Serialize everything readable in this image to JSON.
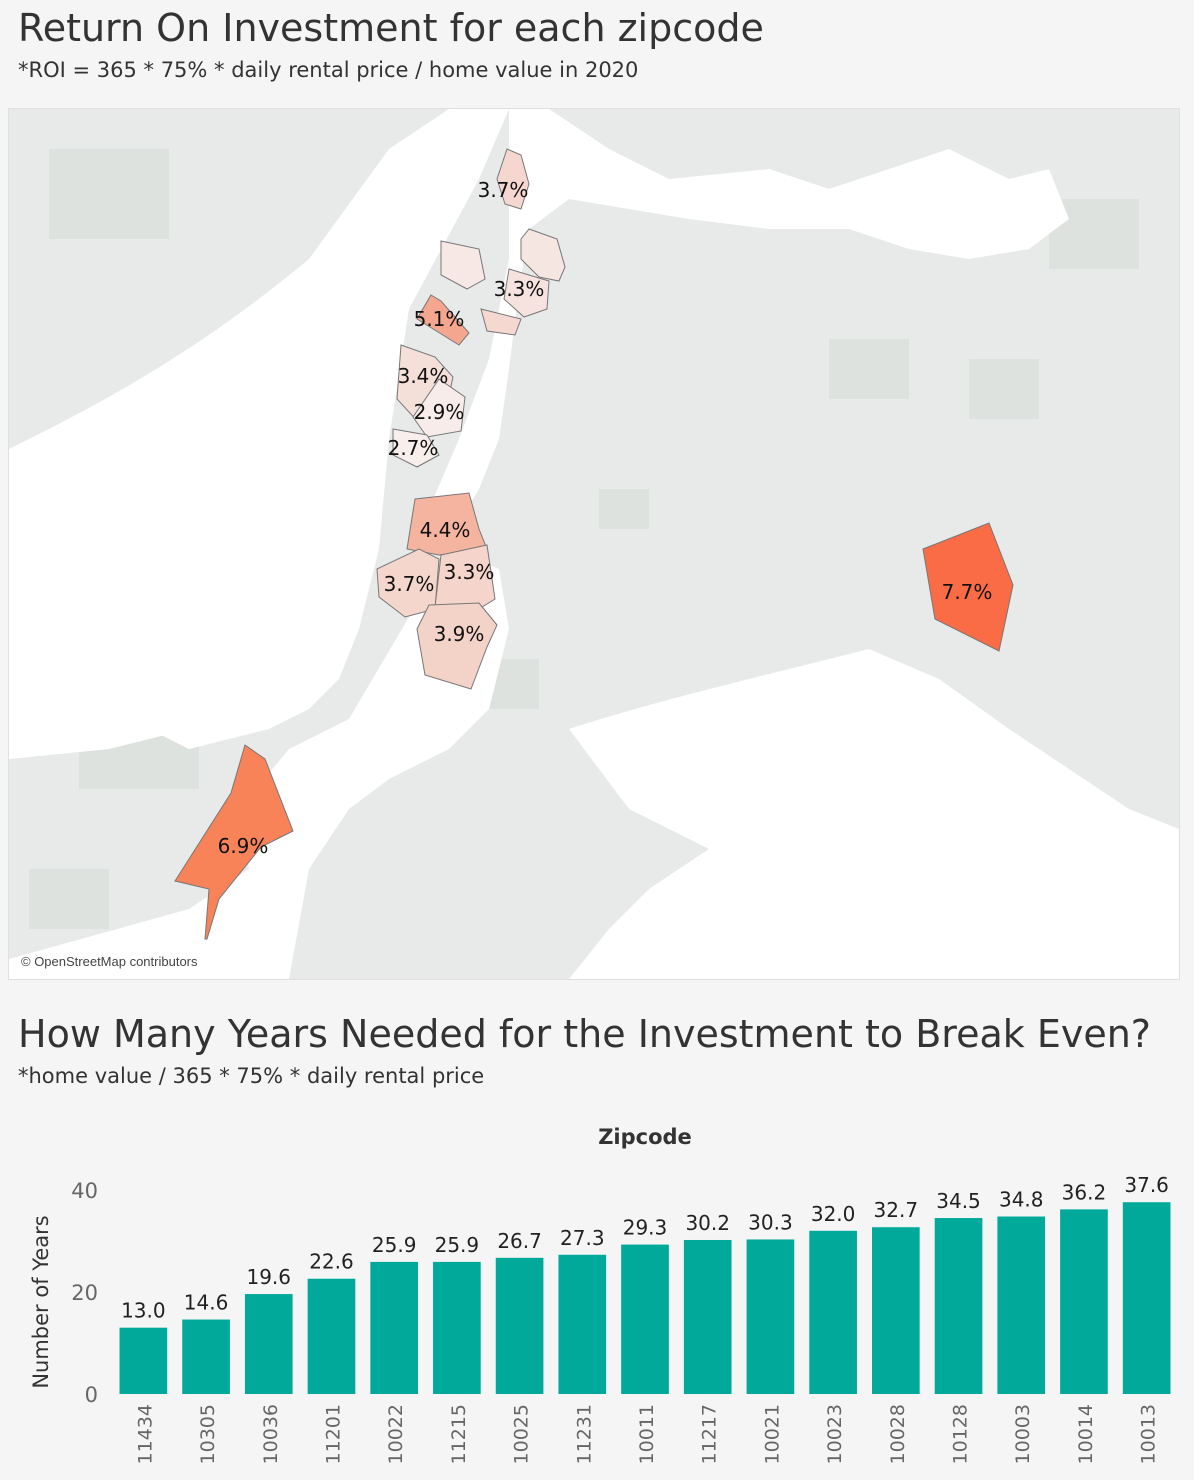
{
  "map_section": {
    "title": "Return On Investment for each zipcode",
    "subtitle": "*ROI = 365 * 75% * daily rental price / home value in 2020",
    "attribution": "© OpenStreetMap contributors",
    "roi_labels": [
      "3.7%",
      "3.3%",
      "5.1%",
      "3.4%",
      "2.9%",
      "2.7%",
      "4.4%",
      "3.7%",
      "3.3%",
      "3.9%",
      "7.7%",
      "6.9%"
    ],
    "colors": {
      "low": "#f7e4e0",
      "mid": "#f4b6a2",
      "high": "#f9805a",
      "water": "#ffffff",
      "land": "#e8e9e9"
    }
  },
  "chart_section": {
    "title": "How Many Years Needed for the Investment to Break Even?",
    "subtitle": "*home value / 365 * 75% * daily rental price"
  },
  "chart_data": {
    "type": "bar",
    "xlabel": "Zipcode",
    "ylabel": "Number of Years",
    "ylim": [
      0,
      40
    ],
    "yticks": [
      "0",
      "20",
      "40"
    ],
    "categories": [
      "11434",
      "10305",
      "10036",
      "11201",
      "10022",
      "11215",
      "10025",
      "11231",
      "10011",
      "11217",
      "10021",
      "10023",
      "10028",
      "10128",
      "10003",
      "10014",
      "10013"
    ],
    "values": [
      13.0,
      14.6,
      19.6,
      22.6,
      25.9,
      25.9,
      26.7,
      27.3,
      29.3,
      30.2,
      30.3,
      32.0,
      32.7,
      34.5,
      34.8,
      36.2,
      37.6
    ],
    "value_labels": [
      "13.0",
      "14.6",
      "19.6",
      "22.6",
      "25.9",
      "25.9",
      "26.7",
      "27.3",
      "29.3",
      "30.2",
      "30.3",
      "32.0",
      "32.7",
      "34.5",
      "34.8",
      "36.2",
      "37.6"
    ],
    "bar_color": "#00a99a"
  }
}
